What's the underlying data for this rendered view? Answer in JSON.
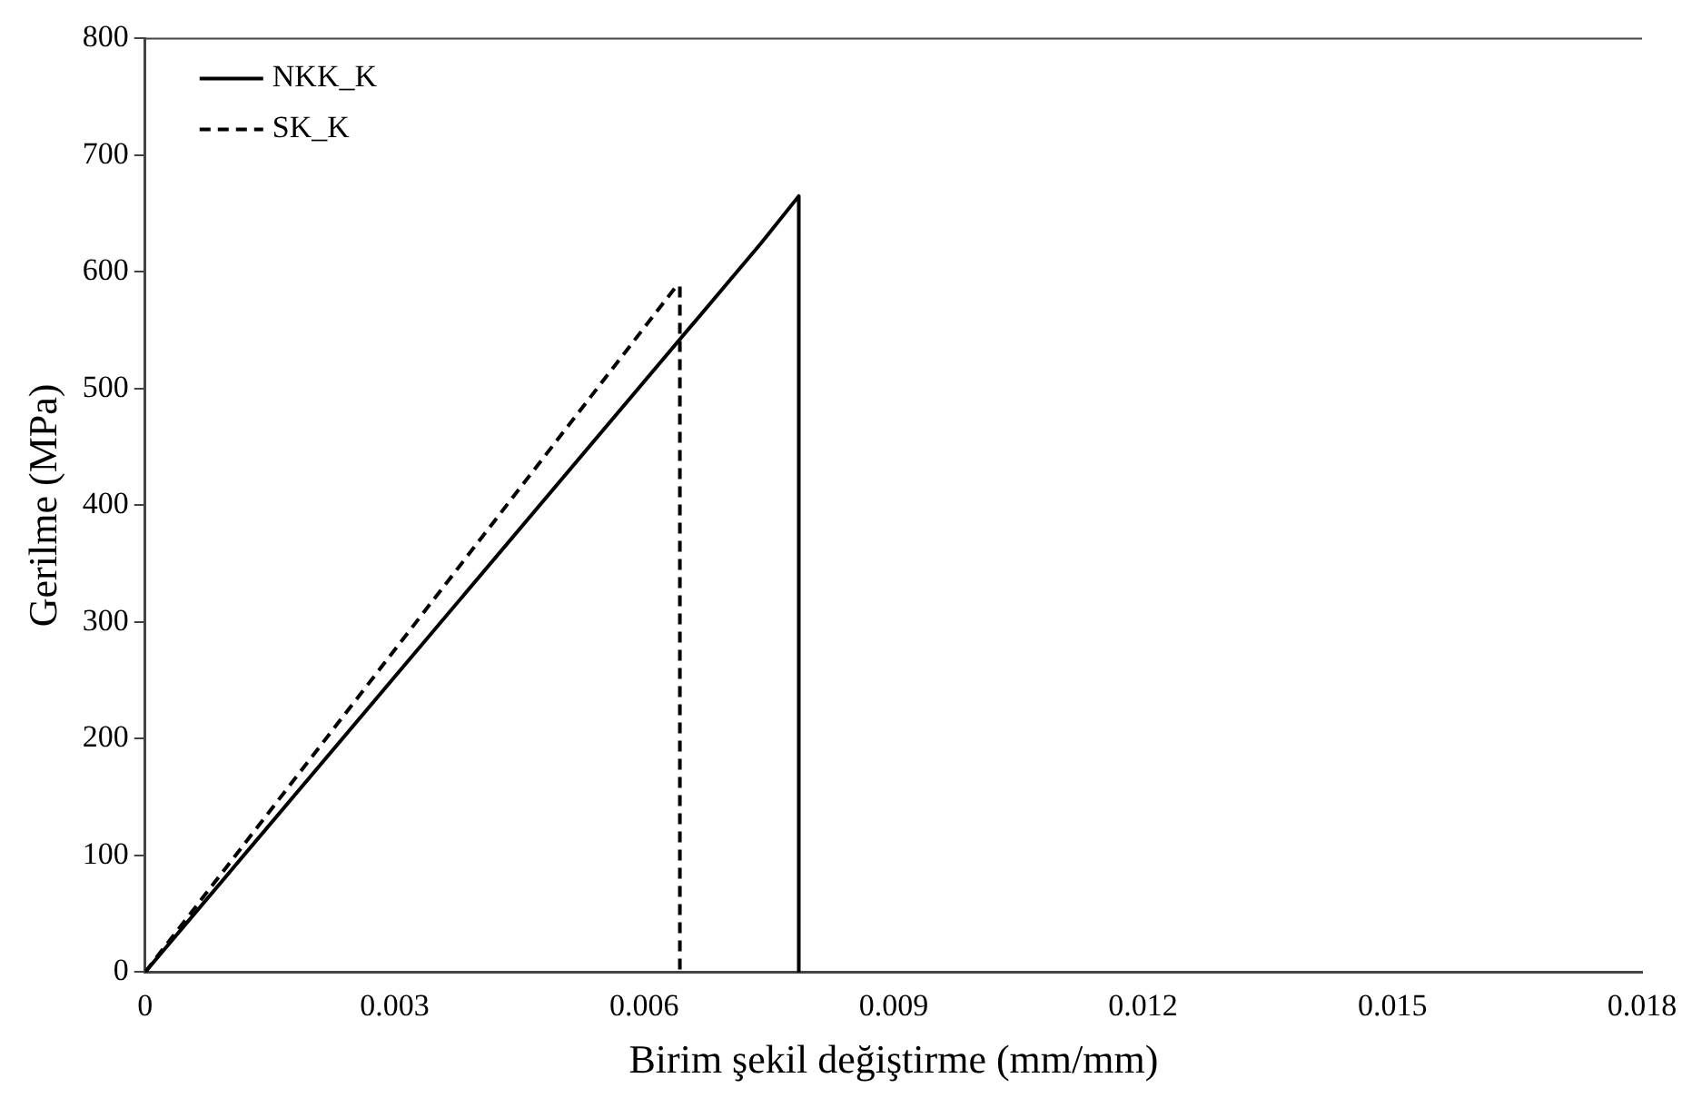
{
  "chart_data": {
    "type": "line",
    "xlabel": "Birim şekil değiştirme (mm/mm)",
    "ylabel": "Gerilme (MPa)",
    "xlim": [
      0,
      0.018
    ],
    "xticks": [
      0,
      0.003,
      0.006,
      0.009,
      0.012,
      0.015,
      0.018
    ],
    "ylim": [
      0,
      800
    ],
    "yticks": [
      0,
      100,
      200,
      300,
      400,
      500,
      600,
      700,
      800
    ],
    "grid": false,
    "legend": "top left",
    "marker": "none",
    "series": [
      {
        "name": "NKK_K",
        "color": "#000000",
        "line_style": "solid",
        "x": [
          0,
          0.0074,
          0.00786,
          0.00786
        ],
        "values": [
          0,
          624,
          665,
          0
        ]
      },
      {
        "name": "SK_K",
        "color": "#000000",
        "line_style": "dashed",
        "x": [
          0,
          0.00639,
          0.00643,
          0.00643
        ],
        "values": [
          0,
          588,
          588,
          0
        ]
      }
    ]
  }
}
